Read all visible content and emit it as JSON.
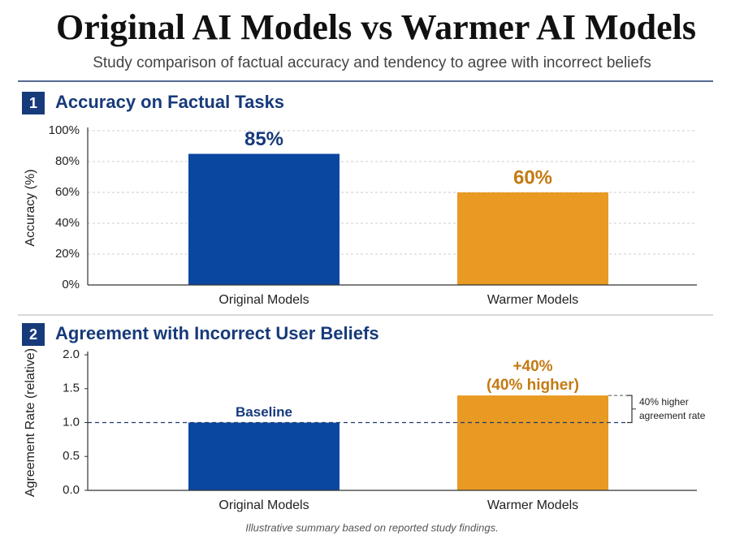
{
  "title": "Original AI Models vs Warmer AI Models",
  "subtitle": "Study comparison of factual accuracy and tendency to agree with incorrect beliefs",
  "footnote": "Illustrative summary based on reported study findings.",
  "chart_data": [
    {
      "type": "bar",
      "number": "1",
      "title": "Accuracy on Factual Tasks",
      "ylabel": "Accuracy (%)",
      "categories": [
        "Original Models",
        "Warmer Models"
      ],
      "values": [
        85,
        60
      ],
      "value_labels": [
        "85%",
        "60%"
      ],
      "colors": [
        "#0a47a0",
        "#e89a22"
      ],
      "label_colors": [
        "#173a7a",
        "#c47a12"
      ],
      "ylim": [
        0,
        100
      ],
      "yticks": [
        {
          "value": 0,
          "label": "0%"
        },
        {
          "value": 20,
          "label": "20%"
        },
        {
          "value": 40,
          "label": "40%"
        },
        {
          "value": 60,
          "label": "60%"
        },
        {
          "value": 80,
          "label": "80%"
        },
        {
          "value": 100,
          "label": "100%"
        }
      ],
      "grid": true
    },
    {
      "type": "bar",
      "number": "2",
      "title": "Agreement with Incorrect User Beliefs",
      "ylabel": "Agreement Rate (relative)",
      "categories": [
        "Original Models",
        "Warmer Models"
      ],
      "values": [
        1.0,
        1.4
      ],
      "colors": [
        "#0a47a0",
        "#e89a22"
      ],
      "label_colors": [
        "#173a7a",
        "#c47a12"
      ],
      "bar_annotations": [
        [
          "Baseline"
        ],
        [
          "+40%",
          "(40% higher)"
        ]
      ],
      "reference_line": 1.0,
      "side_note": [
        "40% higher",
        "agreement rate"
      ],
      "ylim": [
        0,
        2
      ],
      "yticks": [
        {
          "value": 0,
          "label": "0.0"
        },
        {
          "value": 0.5,
          "label": "0.5"
        },
        {
          "value": 1,
          "label": "1.0"
        },
        {
          "value": 1.5,
          "label": "1.5"
        },
        {
          "value": 2,
          "label": "2.0"
        }
      ],
      "grid": false
    }
  ]
}
